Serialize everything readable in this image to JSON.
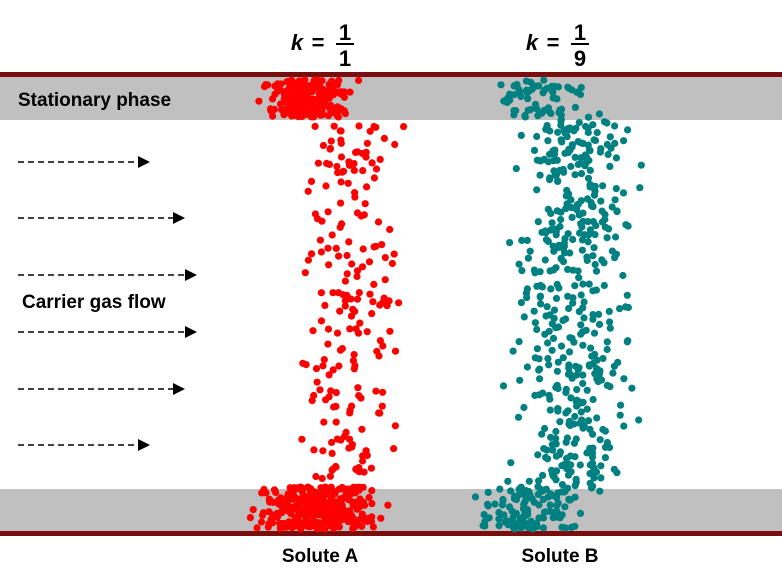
{
  "labels": {
    "k_a": {
      "variable": "k",
      "equals": "=",
      "numerator": "1",
      "denominator": "1"
    },
    "k_b": {
      "variable": "k",
      "equals": "=",
      "numerator": "1",
      "denominator": "9"
    },
    "stationary_phase": "Stationary phase",
    "carrier_gas_flow": "Carrier gas flow",
    "solute_a": "Solute A",
    "solute_b": "Solute B"
  }
}
